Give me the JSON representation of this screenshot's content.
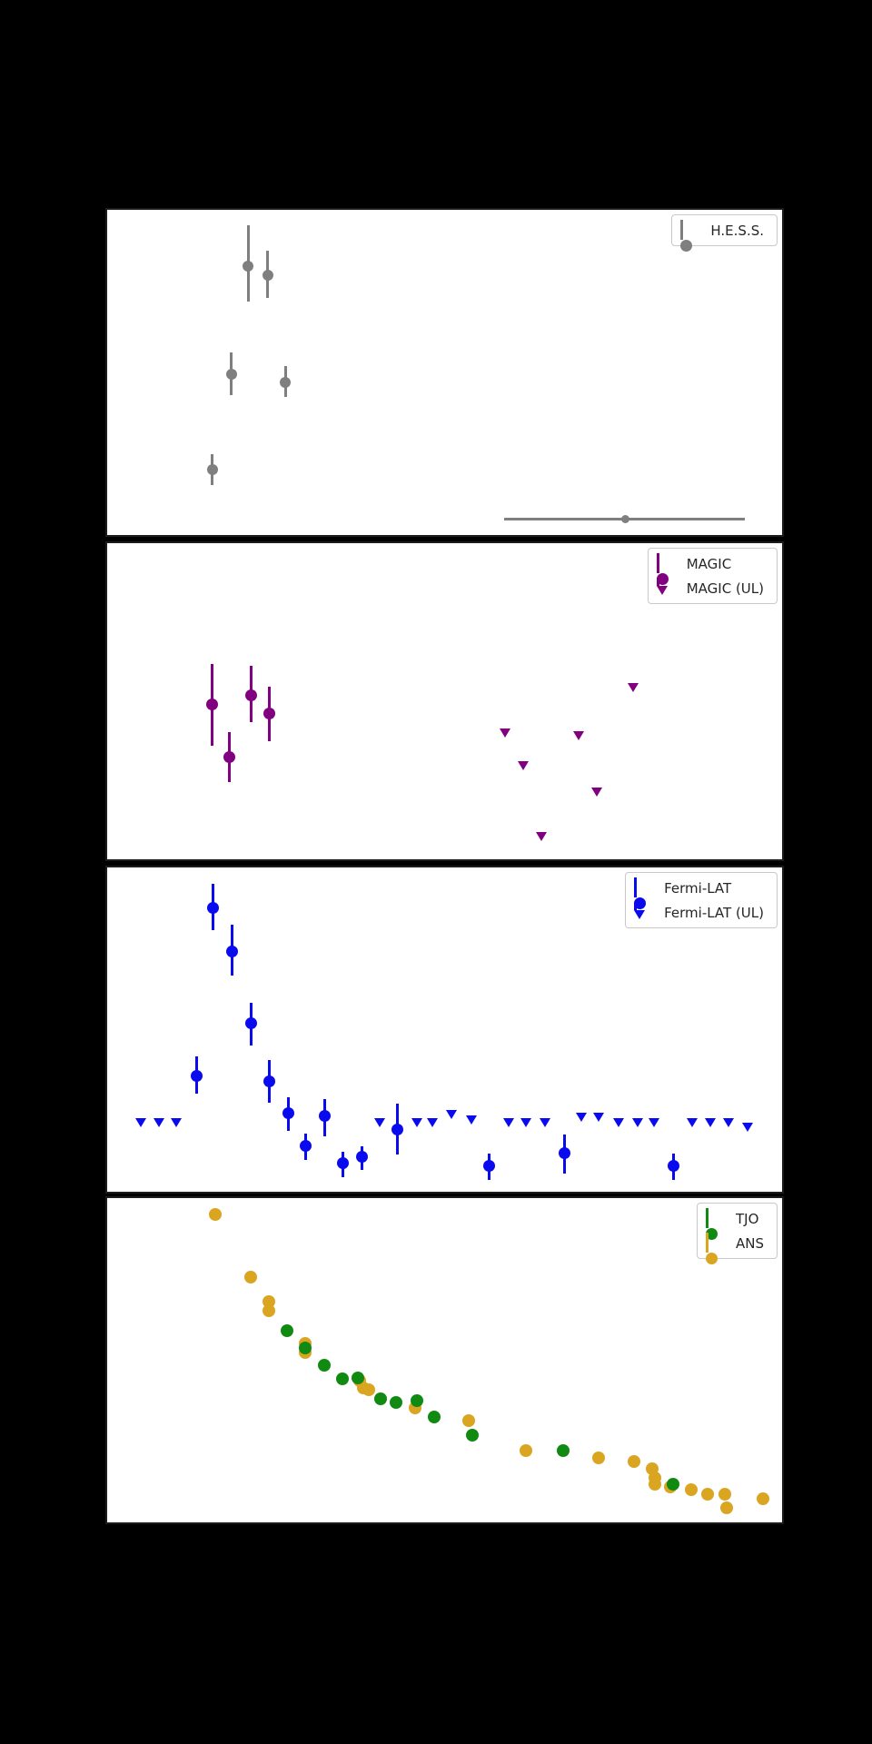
{
  "figure": {
    "background": "#000000",
    "panel_background": "#ffffff",
    "spine_color": "#1c1c1c",
    "legend_style": {
      "text_color": "#262626",
      "border_color": "#c9c9c9",
      "background": "#ffffff"
    },
    "axis_tick_labels_visible": false,
    "axis_titles_visible": false
  },
  "chart_data": [
    {
      "type": "scatter",
      "panel": "hess",
      "legend": [
        {
          "label": "H.E.S.S.",
          "marker": "circle-errorbar",
          "color": "#7f7f7f"
        }
      ],
      "series": [
        {
          "name": "H.E.S.S.",
          "marker": "circle",
          "color": "#7f7f7f",
          "size": 12,
          "points": [
            {
              "x": 0.209,
              "y": 0.172,
              "eu": 0.125,
              "ed": 0.111
            },
            {
              "x": 0.238,
              "y": 0.2,
              "eu": 0.075,
              "ed": 0.072
            },
            {
              "x": 0.184,
              "y": 0.506,
              "eu": 0.067,
              "ed": 0.064
            },
            {
              "x": 0.264,
              "y": 0.531,
              "eu": 0.05,
              "ed": 0.044
            },
            {
              "x": 0.156,
              "y": 0.8,
              "eu": 0.05,
              "ed": 0.047
            },
            {
              "x": 0.768,
              "y": 0.95,
              "eu": 0.0,
              "ed": 0.0,
              "xl": 0.18,
              "xr": 0.177,
              "size": 9
            }
          ]
        }
      ]
    },
    {
      "type": "scatter",
      "panel": "magic",
      "legend": [
        {
          "label": "MAGIC",
          "marker": "circle-errorbar",
          "color": "#800080"
        },
        {
          "label": "MAGIC (UL)",
          "marker": "triangle-ul",
          "color": "#800080"
        }
      ],
      "series": [
        {
          "name": "MAGIC",
          "marker": "circle",
          "color": "#800080",
          "size": 13,
          "points": [
            {
              "x": 0.156,
              "y": 0.511,
              "eu": 0.129,
              "ed": 0.131
            },
            {
              "x": 0.213,
              "y": 0.48,
              "eu": 0.091,
              "ed": 0.086
            },
            {
              "x": 0.24,
              "y": 0.54,
              "eu": 0.086,
              "ed": 0.086
            },
            {
              "x": 0.181,
              "y": 0.677,
              "eu": 0.08,
              "ed": 0.08
            }
          ]
        },
        {
          "name": "MAGIC (UL)",
          "marker": "triangle-down",
          "color": "#800080",
          "size": 13,
          "points": [
            {
              "x": 0.59,
              "y": 0.6
            },
            {
              "x": 0.617,
              "y": 0.703
            },
            {
              "x": 0.644,
              "y": 0.929
            },
            {
              "x": 0.699,
              "y": 0.609
            },
            {
              "x": 0.726,
              "y": 0.786
            },
            {
              "x": 0.78,
              "y": 0.457
            }
          ]
        }
      ]
    },
    {
      "type": "scatter",
      "panel": "fermi-lat",
      "legend": [
        {
          "label": "Fermi-LAT",
          "marker": "circle-errorbar",
          "color": "#0a0aee"
        },
        {
          "label": "Fermi-LAT (UL)",
          "marker": "triangle-ul",
          "color": "#0a0aee"
        }
      ],
      "series": [
        {
          "name": "Fermi-LAT",
          "marker": "circle",
          "color": "#0a0aee",
          "size": 13,
          "points": [
            {
              "x": 0.157,
              "y": 0.125,
              "eu": 0.075,
              "ed": 0.069
            },
            {
              "x": 0.185,
              "y": 0.258,
              "eu": 0.081,
              "ed": 0.075
            },
            {
              "x": 0.213,
              "y": 0.481,
              "eu": 0.064,
              "ed": 0.069
            },
            {
              "x": 0.132,
              "y": 0.642,
              "eu": 0.058,
              "ed": 0.056
            },
            {
              "x": 0.24,
              "y": 0.661,
              "eu": 0.067,
              "ed": 0.064
            },
            {
              "x": 0.268,
              "y": 0.758,
              "eu": 0.05,
              "ed": 0.053
            },
            {
              "x": 0.322,
              "y": 0.767,
              "eu": 0.053,
              "ed": 0.061
            },
            {
              "x": 0.294,
              "y": 0.858,
              "eu": 0.036,
              "ed": 0.044
            },
            {
              "x": 0.349,
              "y": 0.911,
              "eu": 0.033,
              "ed": 0.044
            },
            {
              "x": 0.377,
              "y": 0.892,
              "eu": 0.033,
              "ed": 0.042
            },
            {
              "x": 0.43,
              "y": 0.808,
              "eu": 0.081,
              "ed": 0.078
            },
            {
              "x": 0.566,
              "y": 0.919,
              "eu": 0.036,
              "ed": 0.044
            },
            {
              "x": 0.678,
              "y": 0.881,
              "eu": 0.058,
              "ed": 0.064
            },
            {
              "x": 0.839,
              "y": 0.919,
              "eu": 0.036,
              "ed": 0.044
            }
          ]
        },
        {
          "name": "Fermi-LAT (UL)",
          "marker": "triangle-down",
          "color": "#0a0aee",
          "size": 13,
          "points": [
            {
              "x": 0.05,
              "y": 0.786
            },
            {
              "x": 0.077,
              "y": 0.786
            },
            {
              "x": 0.103,
              "y": 0.786
            },
            {
              "x": 0.404,
              "y": 0.786
            },
            {
              "x": 0.459,
              "y": 0.786
            },
            {
              "x": 0.482,
              "y": 0.786
            },
            {
              "x": 0.511,
              "y": 0.762
            },
            {
              "x": 0.54,
              "y": 0.78
            },
            {
              "x": 0.595,
              "y": 0.786
            },
            {
              "x": 0.621,
              "y": 0.786
            },
            {
              "x": 0.65,
              "y": 0.786
            },
            {
              "x": 0.703,
              "y": 0.77
            },
            {
              "x": 0.729,
              "y": 0.77
            },
            {
              "x": 0.758,
              "y": 0.786
            },
            {
              "x": 0.787,
              "y": 0.786
            },
            {
              "x": 0.811,
              "y": 0.786
            },
            {
              "x": 0.867,
              "y": 0.786
            },
            {
              "x": 0.894,
              "y": 0.786
            },
            {
              "x": 0.921,
              "y": 0.786
            },
            {
              "x": 0.949,
              "y": 0.8
            }
          ]
        }
      ]
    },
    {
      "type": "scatter",
      "panel": "optical",
      "legend": [
        {
          "label": "TJO",
          "marker": "circle-errorbar",
          "color": "#118a11"
        },
        {
          "label": "ANS",
          "marker": "circle-errorbar",
          "color": "#daa520"
        }
      ],
      "series": [
        {
          "name": "ANS",
          "marker": "circle",
          "color": "#daa520",
          "size": 14,
          "points": [
            {
              "x": 0.16,
              "y": 0.05
            },
            {
              "x": 0.212,
              "y": 0.245
            },
            {
              "x": 0.239,
              "y": 0.32
            },
            {
              "x": 0.24,
              "y": 0.348
            },
            {
              "x": 0.293,
              "y": 0.449
            },
            {
              "x": 0.294,
              "y": 0.476
            },
            {
              "x": 0.374,
              "y": 0.563
            },
            {
              "x": 0.379,
              "y": 0.585
            },
            {
              "x": 0.388,
              "y": 0.591
            },
            {
              "x": 0.456,
              "y": 0.646
            },
            {
              "x": 0.536,
              "y": 0.685
            },
            {
              "x": 0.621,
              "y": 0.78
            },
            {
              "x": 0.728,
              "y": 0.802
            },
            {
              "x": 0.781,
              "y": 0.811
            },
            {
              "x": 0.808,
              "y": 0.836
            },
            {
              "x": 0.812,
              "y": 0.863
            },
            {
              "x": 0.812,
              "y": 0.883
            },
            {
              "x": 0.835,
              "y": 0.891
            },
            {
              "x": 0.866,
              "y": 0.9
            },
            {
              "x": 0.89,
              "y": 0.914
            },
            {
              "x": 0.915,
              "y": 0.914
            },
            {
              "x": 0.918,
              "y": 0.955
            },
            {
              "x": 0.972,
              "y": 0.928
            }
          ]
        },
        {
          "name": "TJO",
          "marker": "circle",
          "color": "#118a11",
          "size": 14,
          "points": [
            {
              "x": 0.266,
              "y": 0.409
            },
            {
              "x": 0.294,
              "y": 0.462
            },
            {
              "x": 0.321,
              "y": 0.515
            },
            {
              "x": 0.349,
              "y": 0.557
            },
            {
              "x": 0.372,
              "y": 0.554
            },
            {
              "x": 0.405,
              "y": 0.618
            },
            {
              "x": 0.428,
              "y": 0.63
            },
            {
              "x": 0.459,
              "y": 0.624
            },
            {
              "x": 0.485,
              "y": 0.674
            },
            {
              "x": 0.541,
              "y": 0.73
            },
            {
              "x": 0.675,
              "y": 0.78
            },
            {
              "x": 0.838,
              "y": 0.883
            }
          ]
        }
      ]
    }
  ]
}
